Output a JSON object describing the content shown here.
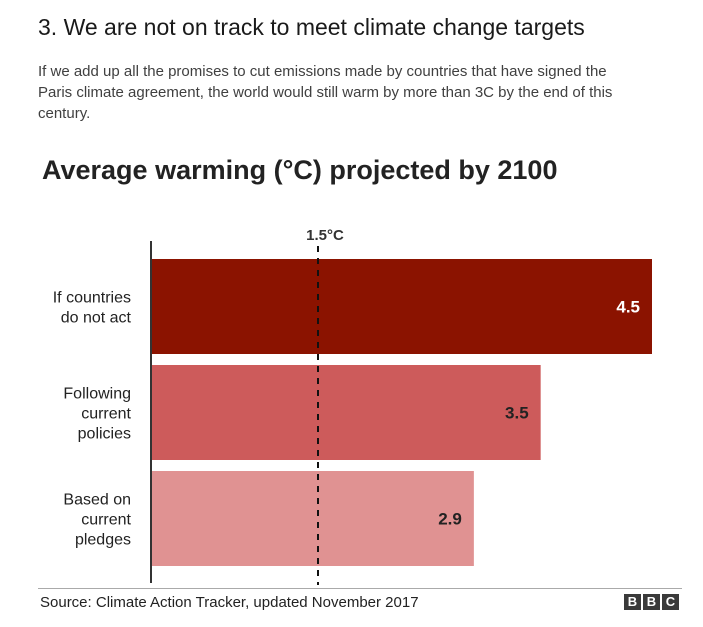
{
  "article": {
    "heading": "3. We are not on track to meet climate change targets",
    "intro": "If we add up all the promises to cut emissions made by countries that have signed the Paris climate agreement, the world would still warm by more than 3C by the end of this century."
  },
  "chart_data": {
    "type": "bar",
    "orientation": "horizontal",
    "title": "Average warming (°C) projected by 2100",
    "categories": [
      [
        "If countries",
        "do not act"
      ],
      [
        "Following",
        "current",
        "policies"
      ],
      [
        "Based on",
        "current",
        "pledges"
      ]
    ],
    "values": [
      4.5,
      3.5,
      2.9
    ],
    "value_labels": [
      "4.5",
      "3.5",
      "2.9"
    ],
    "colors": [
      "#8b1300",
      "#cd5b5b",
      "#e09292"
    ],
    "label_colors": [
      "#ffffff",
      "#222222",
      "#222222"
    ],
    "xlim": [
      0,
      4.5
    ],
    "reference_line": {
      "value": 1.5,
      "label": "1.5°C",
      "style": "dashed"
    },
    "grid": false,
    "legend": "none"
  },
  "footer": {
    "source": "Source: Climate Action Tracker, updated November 2017",
    "logo_letters": [
      "B",
      "B",
      "C"
    ]
  }
}
